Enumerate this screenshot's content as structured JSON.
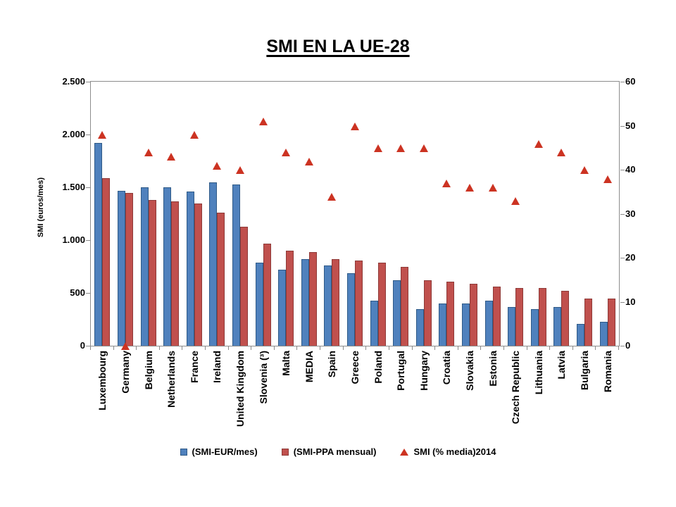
{
  "chart_data": {
    "type": "bar",
    "title": "SMI EN LA UE-28",
    "legend_position": "bottom",
    "grid": false,
    "categories": [
      "Luxembourg",
      "Germany",
      "Belgium",
      "Netherlands",
      "France",
      "Ireland",
      "United Kingdom",
      "Slovenia (³)",
      "Malta",
      "MEDIA",
      "Spain",
      "Greece",
      "Poland",
      "Portugal",
      "Hungary",
      "Croatia",
      "Slovakia",
      "Estonia",
      "Czech Republic",
      "Lithuania",
      "Latvia",
      "Bulgaria",
      "Romania"
    ],
    "series": [
      {
        "name": "(SMI-EUR/mes)",
        "kind": "bar",
        "axis": "left",
        "color": "#4f81bd",
        "border_color": "#2f5a87",
        "values": [
          1920,
          1470,
          1500,
          1500,
          1460,
          1546,
          1530,
          790,
          720,
          820,
          760,
          690,
          430,
          620,
          350,
          400,
          400,
          430,
          370,
          350,
          370,
          210,
          230
        ]
      },
      {
        "name": "(SMI-PPA mensual)",
        "kind": "bar",
        "axis": "left",
        "color": "#c0504d",
        "border_color": "#8e3a38",
        "values": [
          1590,
          1450,
          1380,
          1370,
          1350,
          1260,
          1130,
          970,
          900,
          890,
          820,
          810,
          790,
          750,
          620,
          610,
          590,
          560,
          550,
          550,
          520,
          450,
          450
        ]
      },
      {
        "name": "SMI (% media)2014",
        "kind": "scatter",
        "marker": "triangle",
        "axis": "right",
        "color": "#cc3322",
        "values": [
          48,
          0,
          44,
          43,
          48,
          41,
          40,
          51,
          44,
          42,
          34,
          50,
          45,
          45,
          45,
          37,
          36,
          36,
          33,
          46,
          44,
          40,
          38
        ]
      }
    ],
    "left_axis": {
      "title": "SMI (euros/mes)",
      "min": 0,
      "max": 2500,
      "tick_values": [
        0,
        500,
        1000,
        1500,
        2000,
        2500
      ],
      "tick_labels": [
        "0",
        "500",
        "1.000",
        "1.500",
        "2.000",
        "2.500"
      ]
    },
    "right_axis": {
      "min": 0,
      "max": 60,
      "tick_values": [
        0,
        10,
        20,
        30,
        40,
        50,
        60
      ],
      "tick_labels": [
        "0",
        "10",
        "20",
        "30",
        "40",
        "50",
        "60"
      ]
    }
  }
}
